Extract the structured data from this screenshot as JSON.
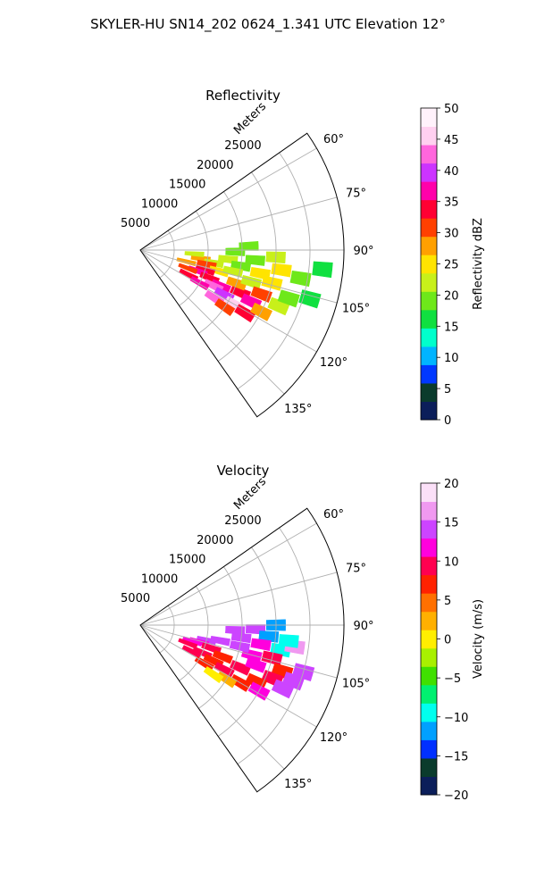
{
  "figure_title": "SKYLER-HU  SN14_202  0624_1.341 UTC Elevation 12°",
  "chart_data": [
    {
      "type": "heatmap",
      "title": "Reflectivity",
      "radial_axis_label": "Meters",
      "range_ticks": [
        "5000",
        "10000",
        "15000",
        "20000",
        "25000"
      ],
      "range_values": [
        5000,
        10000,
        15000,
        20000,
        25000
      ],
      "range_max": 30000,
      "azimuth_ticks": [
        "60°",
        "75°",
        "90°",
        "105°",
        "120°",
        "135°"
      ],
      "azimuth_values": [
        60,
        75,
        90,
        105,
        120,
        135
      ],
      "azimuth_range": [
        55,
        145
      ],
      "colorbar": {
        "label": "Reflectivity dBZ",
        "ticks": [
          "0",
          "5",
          "10",
          "15",
          "20",
          "25",
          "30",
          "35",
          "40",
          "45",
          "50"
        ],
        "tick_values": [
          0,
          5,
          10,
          15,
          20,
          25,
          30,
          35,
          40,
          45,
          50
        ],
        "range": [
          0,
          50
        ],
        "colors": [
          "#0b1e5a",
          "#0a3b2c",
          "#0038ff",
          "#00b4ff",
          "#00ffcc",
          "#10e040",
          "#6ee81a",
          "#c8f01a",
          "#ffe400",
          "#ffa000",
          "#ff4000",
          "#ff0033",
          "#ff00aa",
          "#cc33ff",
          "#ff66dd",
          "#ffd0f0",
          "#fff2fb"
        ]
      },
      "cells": [
        {
          "az": 98,
          "r": 9000,
          "v": 27
        },
        {
          "az": 100,
          "r": 11000,
          "v": 23
        },
        {
          "az": 102,
          "r": 10000,
          "v": 30
        },
        {
          "az": 105,
          "r": 12000,
          "v": 25
        },
        {
          "az": 96,
          "r": 13000,
          "v": 21
        },
        {
          "az": 99,
          "r": 15000,
          "v": 20
        },
        {
          "az": 103,
          "r": 14000,
          "v": 22
        },
        {
          "az": 107,
          "r": 10000,
          "v": 33
        },
        {
          "az": 110,
          "r": 9000,
          "v": 36
        },
        {
          "az": 112,
          "r": 11000,
          "v": 35
        },
        {
          "az": 114,
          "r": 13000,
          "v": 38
        },
        {
          "az": 116,
          "r": 12000,
          "v": 42
        },
        {
          "az": 118,
          "r": 14000,
          "v": 40
        },
        {
          "az": 113,
          "r": 16000,
          "v": 33
        },
        {
          "az": 109,
          "r": 15000,
          "v": 28
        },
        {
          "az": 106,
          "r": 17000,
          "v": 22
        },
        {
          "az": 101,
          "r": 18000,
          "v": 26
        },
        {
          "az": 95,
          "r": 17000,
          "v": 20
        },
        {
          "az": 93,
          "r": 20000,
          "v": 21
        },
        {
          "az": 98,
          "r": 21000,
          "v": 24
        },
        {
          "az": 104,
          "r": 20000,
          "v": 25
        },
        {
          "az": 110,
          "r": 19000,
          "v": 30
        },
        {
          "az": 115,
          "r": 18000,
          "v": 36
        },
        {
          "az": 120,
          "r": 16000,
          "v": 45
        },
        {
          "az": 121,
          "r": 18000,
          "v": 35
        },
        {
          "az": 117,
          "r": 20000,
          "v": 27
        },
        {
          "az": 112,
          "r": 22000,
          "v": 22
        },
        {
          "az": 100,
          "r": 24000,
          "v": 18
        },
        {
          "az": 108,
          "r": 23000,
          "v": 20
        },
        {
          "az": 91,
          "r": 14000,
          "v": 19
        },
        {
          "az": 88,
          "r": 16000,
          "v": 18
        },
        {
          "az": 94,
          "r": 8000,
          "v": 22
        },
        {
          "az": 104,
          "r": 7000,
          "v": 28
        },
        {
          "az": 111,
          "r": 7500,
          "v": 32
        },
        {
          "az": 117,
          "r": 8000,
          "v": 34
        },
        {
          "az": 119,
          "r": 10000,
          "v": 38
        },
        {
          "az": 123,
          "r": 13000,
          "v": 44
        },
        {
          "az": 124,
          "r": 15000,
          "v": 30
        },
        {
          "az": 106,
          "r": 26000,
          "v": 17
        },
        {
          "az": 96,
          "r": 27000,
          "v": 15
        }
      ]
    },
    {
      "type": "heatmap",
      "title": "Velocity",
      "radial_axis_label": "Meters",
      "range_ticks": [
        "5000",
        "10000",
        "15000",
        "20000",
        "25000"
      ],
      "range_values": [
        5000,
        10000,
        15000,
        20000,
        25000
      ],
      "range_max": 30000,
      "azimuth_ticks": [
        "60°",
        "75°",
        "90°",
        "105°",
        "120°",
        "135°"
      ],
      "azimuth_values": [
        60,
        75,
        90,
        105,
        120,
        135
      ],
      "azimuth_range": [
        55,
        145
      ],
      "colorbar": {
        "label": "Velocity (m/s)",
        "ticks": [
          "−20",
          "−15",
          "−10",
          "−5",
          "0",
          "5",
          "10",
          "15",
          "20"
        ],
        "tick_values": [
          -20,
          -15,
          -10,
          -5,
          0,
          5,
          10,
          15,
          20
        ],
        "range": [
          -20,
          20
        ],
        "colors": [
          "#0b1e5a",
          "#0a3b2c",
          "#0030ff",
          "#00a0ff",
          "#00ffee",
          "#00f070",
          "#40e000",
          "#a8f000",
          "#ffee00",
          "#ffb000",
          "#ff7000",
          "#ff2200",
          "#ff0050",
          "#ff00dd",
          "#cc44ff",
          "#f099f0",
          "#fbe0f8"
        ]
      },
      "cells": [
        {
          "az": 92,
          "r": 17000,
          "v": 14
        },
        {
          "az": 95,
          "r": 19000,
          "v": -11
        },
        {
          "az": 90,
          "r": 20000,
          "v": -12
        },
        {
          "az": 97,
          "r": 15000,
          "v": 13
        },
        {
          "az": 93,
          "r": 14000,
          "v": 15
        },
        {
          "az": 100,
          "r": 21000,
          "v": -10
        },
        {
          "az": 98,
          "r": 23000,
          "v": 16
        },
        {
          "az": 103,
          "r": 10000,
          "v": 14
        },
        {
          "az": 106,
          "r": 9000,
          "v": 12
        },
        {
          "az": 108,
          "r": 11000,
          "v": 10
        },
        {
          "az": 111,
          "r": 13000,
          "v": 8
        },
        {
          "az": 114,
          "r": 10000,
          "v": 9
        },
        {
          "az": 116,
          "r": 12000,
          "v": 7
        },
        {
          "az": 118,
          "r": 14000,
          "v": 9
        },
        {
          "az": 113,
          "r": 16000,
          "v": 10
        },
        {
          "az": 109,
          "r": 18000,
          "v": 11
        },
        {
          "az": 105,
          "r": 17000,
          "v": 12
        },
        {
          "az": 102,
          "r": 15000,
          "v": 14
        },
        {
          "az": 104,
          "r": 20000,
          "v": 9
        },
        {
          "az": 108,
          "r": 22000,
          "v": 8
        },
        {
          "az": 112,
          "r": 21000,
          "v": 10
        },
        {
          "az": 116,
          "r": 19000,
          "v": 6
        },
        {
          "az": 120,
          "r": 17000,
          "v": 8
        },
        {
          "az": 122,
          "r": 15000,
          "v": 3
        },
        {
          "az": 119,
          "r": 20000,
          "v": 11
        },
        {
          "az": 114,
          "r": 23000,
          "v": 15
        },
        {
          "az": 110,
          "r": 24000,
          "v": 13
        },
        {
          "az": 107,
          "r": 8000,
          "v": 11
        },
        {
          "az": 111,
          "r": 7500,
          "v": 10
        },
        {
          "az": 117,
          "r": 8500,
          "v": 9
        },
        {
          "az": 121,
          "r": 11000,
          "v": 7
        },
        {
          "az": 124,
          "r": 13000,
          "v": 1
        },
        {
          "az": 101,
          "r": 12000,
          "v": 15
        },
        {
          "az": 99,
          "r": 18000,
          "v": 12
        },
        {
          "az": 96,
          "r": 22000,
          "v": -9
        },
        {
          "az": 106,
          "r": 25000,
          "v": 14
        }
      ]
    }
  ]
}
